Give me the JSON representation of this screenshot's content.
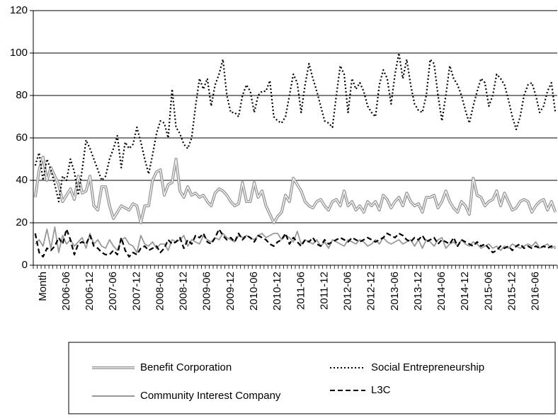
{
  "chart_data": {
    "type": "line",
    "categories": [
      null,
      null,
      "Month",
      null,
      null,
      null,
      null,
      null,
      "2006-06",
      null,
      null,
      null,
      null,
      null,
      "2006-12",
      null,
      null,
      null,
      null,
      null,
      "2007-06",
      null,
      null,
      null,
      null,
      null,
      "2007-12",
      null,
      null,
      null,
      null,
      null,
      "2008-06",
      null,
      null,
      null,
      null,
      null,
      "2008-12",
      null,
      null,
      null,
      null,
      null,
      "2009-06",
      null,
      null,
      null,
      null,
      null,
      "2009-12",
      null,
      null,
      null,
      null,
      null,
      "2010-06",
      null,
      null,
      null,
      null,
      null,
      "2010-12",
      null,
      null,
      null,
      null,
      null,
      "2011-06",
      null,
      null,
      null,
      null,
      null,
      "2011-12",
      null,
      null,
      null,
      null,
      null,
      "2012-06",
      null,
      null,
      null,
      null,
      null,
      "2012-12",
      null,
      null,
      null,
      null,
      null,
      "2013-06",
      null,
      null,
      null,
      null,
      null,
      "2013-12",
      null,
      null,
      null,
      null,
      null,
      "2014-06",
      null,
      null,
      null,
      null,
      null,
      "2014-12",
      null,
      null,
      null,
      null,
      null,
      "2015-06",
      null,
      null,
      null,
      null,
      null,
      "2015-12",
      null,
      null,
      null,
      null,
      null,
      "2016-06",
      null,
      null,
      null,
      null,
      null
    ],
    "series": [
      {
        "name": "Benefit Corporation",
        "color": "#999999",
        "style": "double",
        "values": [
          32,
          45,
          51,
          40,
          46,
          42,
          38,
          30,
          33,
          36,
          31,
          42,
          34,
          35,
          42,
          28,
          26,
          37,
          37,
          28,
          22,
          25,
          28,
          27,
          26,
          29,
          28,
          20,
          28,
          28,
          40,
          44,
          45,
          33,
          38,
          39,
          50,
          35,
          32,
          37,
          33,
          34,
          32,
          33,
          30,
          28,
          34,
          36,
          35,
          33,
          30,
          28,
          29,
          39,
          30,
          30,
          39,
          32,
          35,
          28,
          24,
          20,
          23,
          25,
          33,
          30,
          41,
          38,
          35,
          30,
          28,
          27,
          30,
          31,
          28,
          26,
          30,
          31,
          28,
          35,
          28,
          30,
          26,
          28,
          25,
          30,
          28,
          30,
          26,
          33,
          31,
          27,
          30,
          32,
          28,
          34,
          30,
          28,
          29,
          25,
          32,
          32,
          33,
          27,
          30,
          35,
          30,
          27,
          25,
          30,
          28,
          24,
          41,
          33,
          32,
          28,
          30,
          31,
          35,
          28,
          34,
          30,
          26,
          27,
          30,
          31,
          30,
          25,
          28,
          30,
          31,
          26,
          30,
          25
        ]
      },
      {
        "name": "Social Entrepreneurship",
        "color": "#000000",
        "style": "dotted",
        "values": [
          47,
          53,
          40,
          50,
          45,
          38,
          30,
          42,
          40,
          50,
          44,
          33,
          45,
          59,
          55,
          50,
          45,
          40,
          42,
          50,
          55,
          61,
          46,
          58,
          55,
          57,
          65,
          58,
          50,
          43,
          52,
          62,
          68,
          67,
          60,
          83,
          65,
          62,
          57,
          55,
          60,
          75,
          88,
          83,
          88,
          75,
          85,
          90,
          97,
          80,
          72,
          72,
          70,
          80,
          85,
          82,
          72,
          80,
          82,
          82,
          87,
          70,
          68,
          67,
          70,
          80,
          90,
          86,
          72,
          85,
          95,
          88,
          82,
          75,
          68,
          67,
          65,
          80,
          94,
          90,
          72,
          88,
          83,
          86,
          82,
          75,
          72,
          70,
          85,
          92,
          88,
          76,
          90,
          100,
          88,
          97,
          85,
          76,
          73,
          72,
          80,
          97,
          95,
          80,
          68,
          80,
          94,
          88,
          85,
          80,
          73,
          67,
          75,
          82,
          88,
          86,
          75,
          80,
          90,
          88,
          85,
          78,
          70,
          64,
          70,
          80,
          85,
          86,
          80,
          72,
          75,
          82,
          86,
          72
        ]
      },
      {
        "name": "Community Interest Company",
        "color": "#999999",
        "style": "solid",
        "values": [
          10,
          12,
          9,
          17,
          8,
          18,
          6,
          14,
          10,
          12,
          9,
          11,
          13,
          8,
          15,
          10,
          12,
          9,
          8,
          12,
          9,
          7,
          12,
          13,
          10,
          9,
          6,
          14,
          10,
          9,
          11,
          8,
          10,
          10,
          7,
          12,
          11,
          12,
          14,
          9,
          12,
          11,
          10,
          14,
          12,
          11,
          13,
          12,
          15,
          13,
          12,
          11,
          14,
          13,
          14,
          13,
          12,
          14,
          15,
          13,
          14,
          15,
          15,
          12,
          14,
          13,
          11,
          16,
          10,
          12,
          11,
          10,
          12,
          9,
          11,
          8,
          12,
          11,
          10,
          9,
          12,
          11,
          10,
          12,
          11,
          9,
          10,
          12,
          10,
          13,
          11,
          10,
          11,
          12,
          10,
          11,
          12,
          9,
          12,
          8,
          12,
          11,
          9,
          12,
          13,
          8,
          10,
          11,
          9,
          12,
          10,
          9,
          11,
          10,
          8,
          9,
          10,
          8,
          9,
          7,
          9,
          8,
          10,
          9,
          8,
          9,
          10,
          9,
          11,
          8,
          9,
          10,
          8,
          9
        ]
      },
      {
        "name": "L3C",
        "color": "#000000",
        "style": "dashed",
        "values": [
          15,
          6,
          4,
          8,
          7,
          9,
          13,
          10,
          17,
          12,
          5,
          10,
          11,
          10,
          14,
          9,
          8,
          6,
          5,
          5,
          7,
          5,
          13,
          7,
          4,
          6,
          5,
          8,
          9,
          7,
          8,
          9,
          6,
          8,
          12,
          10,
          11,
          13,
          8,
          12,
          10,
          14,
          13,
          15,
          11,
          10,
          13,
          17,
          14,
          12,
          13,
          11,
          15,
          12,
          14,
          13,
          11,
          14,
          13,
          12,
          10,
          9,
          11,
          12,
          15,
          10,
          13,
          11,
          9,
          12,
          11,
          13,
          10,
          9,
          12,
          10,
          11,
          12,
          13,
          12,
          11,
          13,
          12,
          11,
          12,
          13,
          12,
          11,
          12,
          13,
          15,
          14,
          13,
          15,
          14,
          12,
          11,
          13,
          12,
          14,
          11,
          12,
          13,
          10,
          12,
          11,
          10,
          13,
          9,
          12,
          11,
          10,
          9,
          11,
          9,
          10,
          8,
          6,
          7,
          9,
          8,
          9,
          7,
          9,
          10,
          8,
          9,
          8,
          9,
          8,
          9,
          8,
          9,
          8
        ]
      }
    ],
    "ylim": [
      0,
      120
    ],
    "yticks": [
      0,
      20,
      40,
      60,
      80,
      100,
      120
    ],
    "grid": true,
    "legend": "bottom"
  }
}
